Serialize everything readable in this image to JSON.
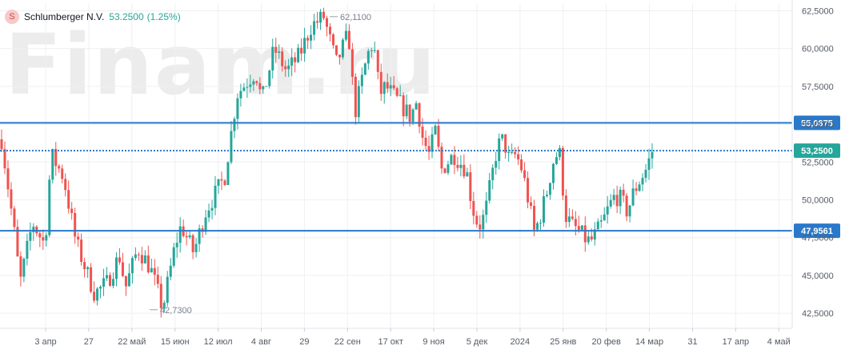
{
  "legend": {
    "icon": "S",
    "name": "Schlumberger N.V.",
    "price": "53.2500",
    "change": "(1.25%)"
  },
  "watermark": "Finam.ru",
  "colors": {
    "up": "#26a69a",
    "down": "#ef5350",
    "level": "#2a78c9",
    "current": "#26a69a",
    "grid": "#eef0f3",
    "axis_text": "#555b66"
  },
  "chart_data": {
    "type": "candlestick",
    "ylim": [
      41.5,
      63.0
    ],
    "y_ticks": [
      "62,5000",
      "60,0000",
      "57,5000",
      "55,0000",
      "52,5000",
      "50,0000",
      "47,5000",
      "45,0000",
      "42,5000"
    ],
    "y_tick_values": [
      62.5,
      60.0,
      57.5,
      55.0,
      52.5,
      50.0,
      47.5,
      45.0,
      42.5
    ],
    "x_labels": [
      "3 апр",
      "27",
      "22 май",
      "15 июн",
      "12 июл",
      "4 авг",
      "29",
      "22 сен",
      "17 окт",
      "9 ноя",
      "5 дек",
      "2024",
      "25 янв",
      "20 фев",
      "14 мар",
      "31",
      "17 апр",
      "4 май"
    ],
    "levels": [
      {
        "value": 55.0875,
        "label": "55,0875"
      },
      {
        "value": 47.9561,
        "label": "47,9561"
      }
    ],
    "current": {
      "value": 53.25,
      "label": "53,2500"
    },
    "annotations": [
      {
        "label": "62,1100",
        "value": 62.11,
        "position": "high"
      },
      {
        "label": "42,7300",
        "value": 42.73,
        "position": "low"
      }
    ],
    "series_path": [
      [
        0,
        54.0
      ],
      [
        2,
        48.0
      ],
      [
        3,
        44.5
      ],
      [
        5,
        48.5
      ],
      [
        7,
        47.0
      ],
      [
        8,
        53.0
      ],
      [
        10,
        51.5
      ],
      [
        12,
        47.2
      ],
      [
        15,
        43.8
      ],
      [
        17,
        44.5
      ],
      [
        19,
        46.3
      ],
      [
        20,
        44.2
      ],
      [
        22,
        46.8
      ],
      [
        24,
        45.5
      ],
      [
        26,
        42.8
      ],
      [
        28,
        47.0
      ],
      [
        29,
        48.3
      ],
      [
        31,
        46.5
      ],
      [
        33,
        49.3
      ],
      [
        36,
        51.5
      ],
      [
        38,
        57.0
      ],
      [
        39,
        57.5
      ],
      [
        41,
        58.5
      ],
      [
        42,
        56.5
      ],
      [
        44,
        60.0
      ],
      [
        46,
        58.5
      ],
      [
        48,
        59.5
      ],
      [
        50,
        61.5
      ],
      [
        52,
        62.1
      ],
      [
        54,
        59.0
      ],
      [
        56,
        61.0
      ],
      [
        57,
        55.7
      ],
      [
        59,
        59.5
      ],
      [
        60,
        60.5
      ],
      [
        61,
        57.0
      ],
      [
        62,
        57.5
      ],
      [
        64,
        56.5
      ],
      [
        66,
        55.5
      ],
      [
        67,
        56.5
      ],
      [
        68,
        54.0
      ],
      [
        69,
        53.0
      ],
      [
        70,
        54.5
      ],
      [
        71,
        52.0
      ],
      [
        73,
        53.0
      ],
      [
        75,
        52.0
      ],
      [
        76,
        49.5
      ],
      [
        77,
        48.2
      ],
      [
        78,
        49.0
      ],
      [
        80,
        53.5
      ],
      [
        81,
        54.0
      ],
      [
        82,
        52.5
      ],
      [
        83,
        53.0
      ],
      [
        84,
        52.0
      ],
      [
        85,
        50.0
      ],
      [
        86,
        47.8
      ],
      [
        87,
        49.0
      ],
      [
        88,
        50.5
      ],
      [
        89,
        52.5
      ],
      [
        90,
        53.3
      ],
      [
        91,
        49.0
      ],
      [
        92,
        48.3
      ],
      [
        93,
        48.0
      ],
      [
        94,
        47.5
      ],
      [
        95,
        47.2
      ],
      [
        96,
        47.8
      ],
      [
        97,
        48.5
      ],
      [
        98,
        49.5
      ],
      [
        99,
        50.3
      ],
      [
        100,
        50.0
      ],
      [
        101,
        49.2
      ],
      [
        102,
        50.5
      ],
      [
        103,
        51.3
      ],
      [
        104,
        52.0
      ],
      [
        105,
        53.2
      ]
    ]
  }
}
